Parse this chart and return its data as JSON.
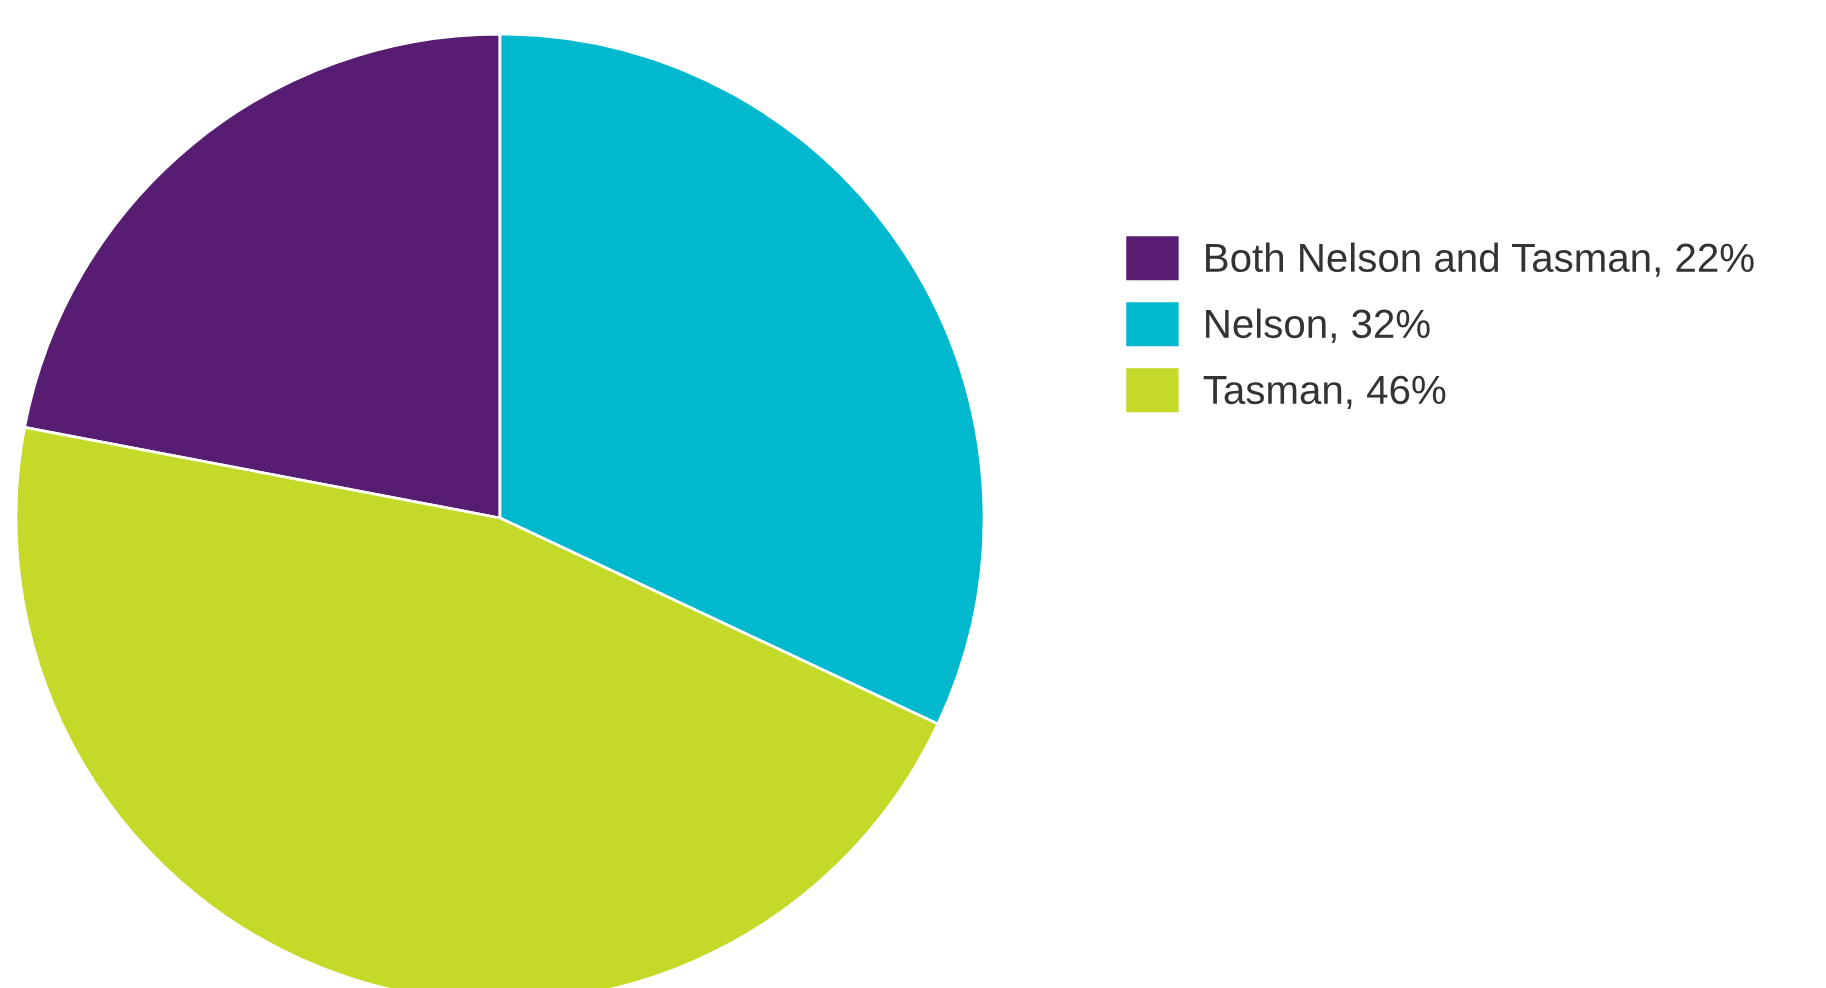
{
  "chart_data": {
    "type": "pie",
    "categories": [
      "Both Nelson and Tasman, 22%",
      "Nelson, 32%",
      "Tasman, 46%"
    ],
    "values": [
      22,
      32,
      46
    ],
    "colors": [
      "#561d72",
      "#00b9cf",
      "#c4d928"
    ],
    "legend": "right"
  }
}
